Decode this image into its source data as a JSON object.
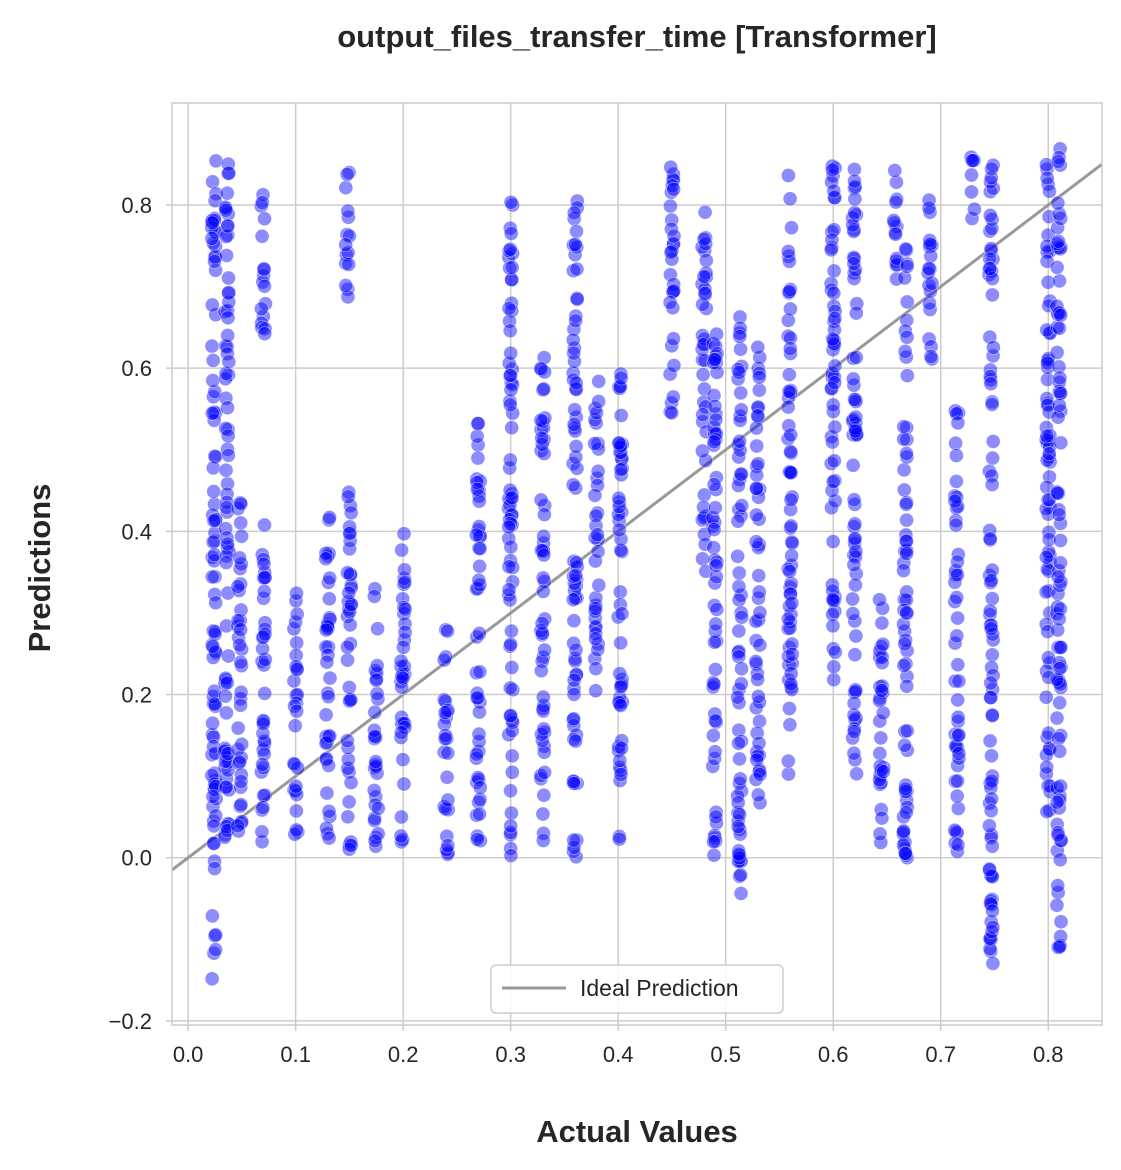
{
  "chart_data": {
    "type": "scatter",
    "title": "output_files_transfer_time [Transformer]",
    "xlabel": "Actual Values",
    "ylabel": "Predictions",
    "xlim": [
      -0.015,
      0.85
    ],
    "ylim": [
      -0.205,
      0.925
    ],
    "xticks": [
      0.0,
      0.1,
      0.2,
      0.3,
      0.4,
      0.5,
      0.6,
      0.7,
      0.8
    ],
    "xtick_labels": [
      "0.0",
      "0.1",
      "0.2",
      "0.3",
      "0.4",
      "0.5",
      "0.6",
      "0.7",
      "0.8"
    ],
    "yticks": [
      -0.2,
      0.0,
      0.2,
      0.4,
      0.6,
      0.8
    ],
    "ytick_labels": [
      "−0.2",
      "0.0",
      "0.2",
      "0.4",
      "0.6",
      "0.8"
    ],
    "grid": true,
    "legend": {
      "position": "bottom-center",
      "entries": [
        "Ideal Prediction"
      ]
    },
    "ideal_line": {
      "label": "Ideal Prediction",
      "color": "#999999",
      "from": [
        -0.015,
        -0.015
      ],
      "to": [
        0.85,
        0.85
      ]
    },
    "series": [
      {
        "name": "Predictions",
        "color": "#0000ff",
        "point_groups": [
          {
            "x": 0.024,
            "y_min": -0.15,
            "y_max": 0.86
          },
          {
            "x": 0.036,
            "y_min": 0.02,
            "y_max": 0.86
          },
          {
            "x": 0.048,
            "y_min": 0.02,
            "y_max": 0.45
          },
          {
            "x": 0.07,
            "y_min": 0.64,
            "y_max": 0.83
          },
          {
            "x": 0.07,
            "y_min": 0.01,
            "y_max": 0.42
          },
          {
            "x": 0.1,
            "y_min": 0.02,
            "y_max": 0.33
          },
          {
            "x": 0.13,
            "y_min": 0.02,
            "y_max": 0.44
          },
          {
            "x": 0.148,
            "y_min": 0.67,
            "y_max": 0.84
          },
          {
            "x": 0.15,
            "y_min": 0.01,
            "y_max": 0.46
          },
          {
            "x": 0.175,
            "y_min": 0.01,
            "y_max": 0.34
          },
          {
            "x": 0.2,
            "y_min": 0.01,
            "y_max": 0.41
          },
          {
            "x": 0.24,
            "y_min": 0.0,
            "y_max": 0.29
          },
          {
            "x": 0.27,
            "y_min": 0.0,
            "y_max": 0.54
          },
          {
            "x": 0.3,
            "y_min": 0.0,
            "y_max": 0.82
          },
          {
            "x": 0.33,
            "y_min": 0.02,
            "y_max": 0.62
          },
          {
            "x": 0.36,
            "y_min": 0.0,
            "y_max": 0.81
          },
          {
            "x": 0.38,
            "y_min": 0.2,
            "y_max": 0.6
          },
          {
            "x": 0.402,
            "y_min": 0.0,
            "y_max": 0.6
          },
          {
            "x": 0.45,
            "y_min": 0.52,
            "y_max": 0.86
          },
          {
            "x": 0.48,
            "y_min": 0.35,
            "y_max": 0.8
          },
          {
            "x": 0.49,
            "y_min": 0.0,
            "y_max": 0.67
          },
          {
            "x": 0.513,
            "y_min": -0.06,
            "y_max": 0.68
          },
          {
            "x": 0.53,
            "y_min": 0.05,
            "y_max": 0.63
          },
          {
            "x": 0.56,
            "y_min": 0.1,
            "y_max": 0.84
          },
          {
            "x": 0.6,
            "y_min": 0.18,
            "y_max": 0.85
          },
          {
            "x": 0.62,
            "y_min": 0.1,
            "y_max": 0.85
          },
          {
            "x": 0.645,
            "y_min": 0.0,
            "y_max": 0.34
          },
          {
            "x": 0.658,
            "y_min": 0.7,
            "y_max": 0.85
          },
          {
            "x": 0.667,
            "y_min": 0.0,
            "y_max": 0.76
          },
          {
            "x": 0.69,
            "y_min": 0.6,
            "y_max": 0.82
          },
          {
            "x": 0.715,
            "y_min": 0.0,
            "y_max": 0.55
          },
          {
            "x": 0.73,
            "y_min": 0.78,
            "y_max": 0.87
          },
          {
            "x": 0.747,
            "y_min": -0.13,
            "y_max": 0.87
          },
          {
            "x": 0.8,
            "y_min": 0.05,
            "y_max": 0.87
          },
          {
            "x": 0.81,
            "y_min": -0.11,
            "y_max": 0.87
          }
        ]
      }
    ]
  }
}
